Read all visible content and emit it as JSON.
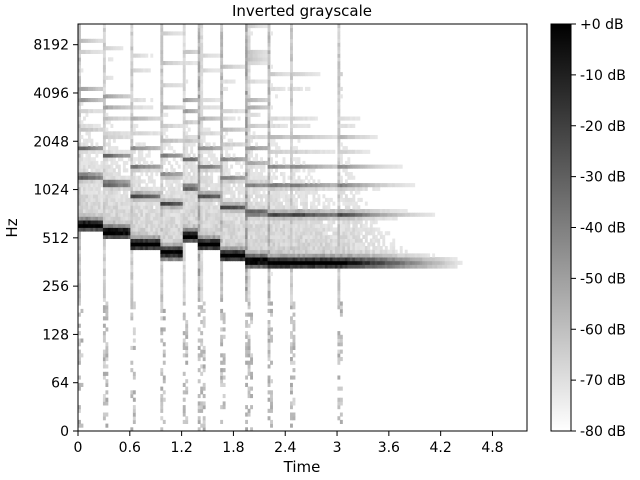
{
  "chart_data": {
    "type": "heatmap",
    "title": "Inverted grayscale",
    "xlabel": "Time",
    "ylabel": "Hz",
    "xlim": [
      0,
      5.2
    ],
    "x_ticks": [
      0,
      0.6,
      1.2,
      1.8,
      2.4,
      3.0,
      3.6,
      4.2,
      4.8
    ],
    "x_tick_labels": [
      "0",
      "0.6",
      "1.2",
      "1.8",
      "2.4",
      "3",
      "3.6",
      "4.2",
      "4.8"
    ],
    "y_scale": "symlog-base2",
    "y_ticks": [
      0,
      64,
      128,
      256,
      512,
      1024,
      2048,
      4096,
      8192
    ],
    "y_tick_labels": [
      "0",
      "64",
      "128",
      "256",
      "512",
      "1024",
      "2048",
      "4096",
      "8192"
    ],
    "colormap": "gray_r",
    "colorbar": {
      "range": [
        -80,
        0
      ],
      "ticks": [
        0,
        -10,
        -20,
        -30,
        -40,
        -50,
        -60,
        -70,
        -80
      ],
      "tick_labels": [
        "+0 dB",
        "-10 dB",
        "-20 dB",
        "-30 dB",
        "-40 dB",
        "-50 dB",
        "-60 dB",
        "-70 dB",
        "-80 dB"
      ],
      "unit": "dB"
    },
    "grid": false,
    "notes_content": {
      "onsets": [
        0.0,
        0.28,
        0.6,
        0.95,
        1.2,
        1.4,
        1.65,
        1.95,
        2.2,
        2.45,
        3.0
      ],
      "fundamental_hz": [
        620,
        560,
        470,
        420,
        530,
        470,
        400,
        370,
        360,
        360,
        360
      ],
      "decay_end": [
        0.3,
        0.62,
        0.97,
        1.22,
        1.42,
        1.67,
        1.97,
        2.22,
        2.47,
        3.02,
        4.5
      ]
    },
    "legend": "colorbar-right"
  }
}
